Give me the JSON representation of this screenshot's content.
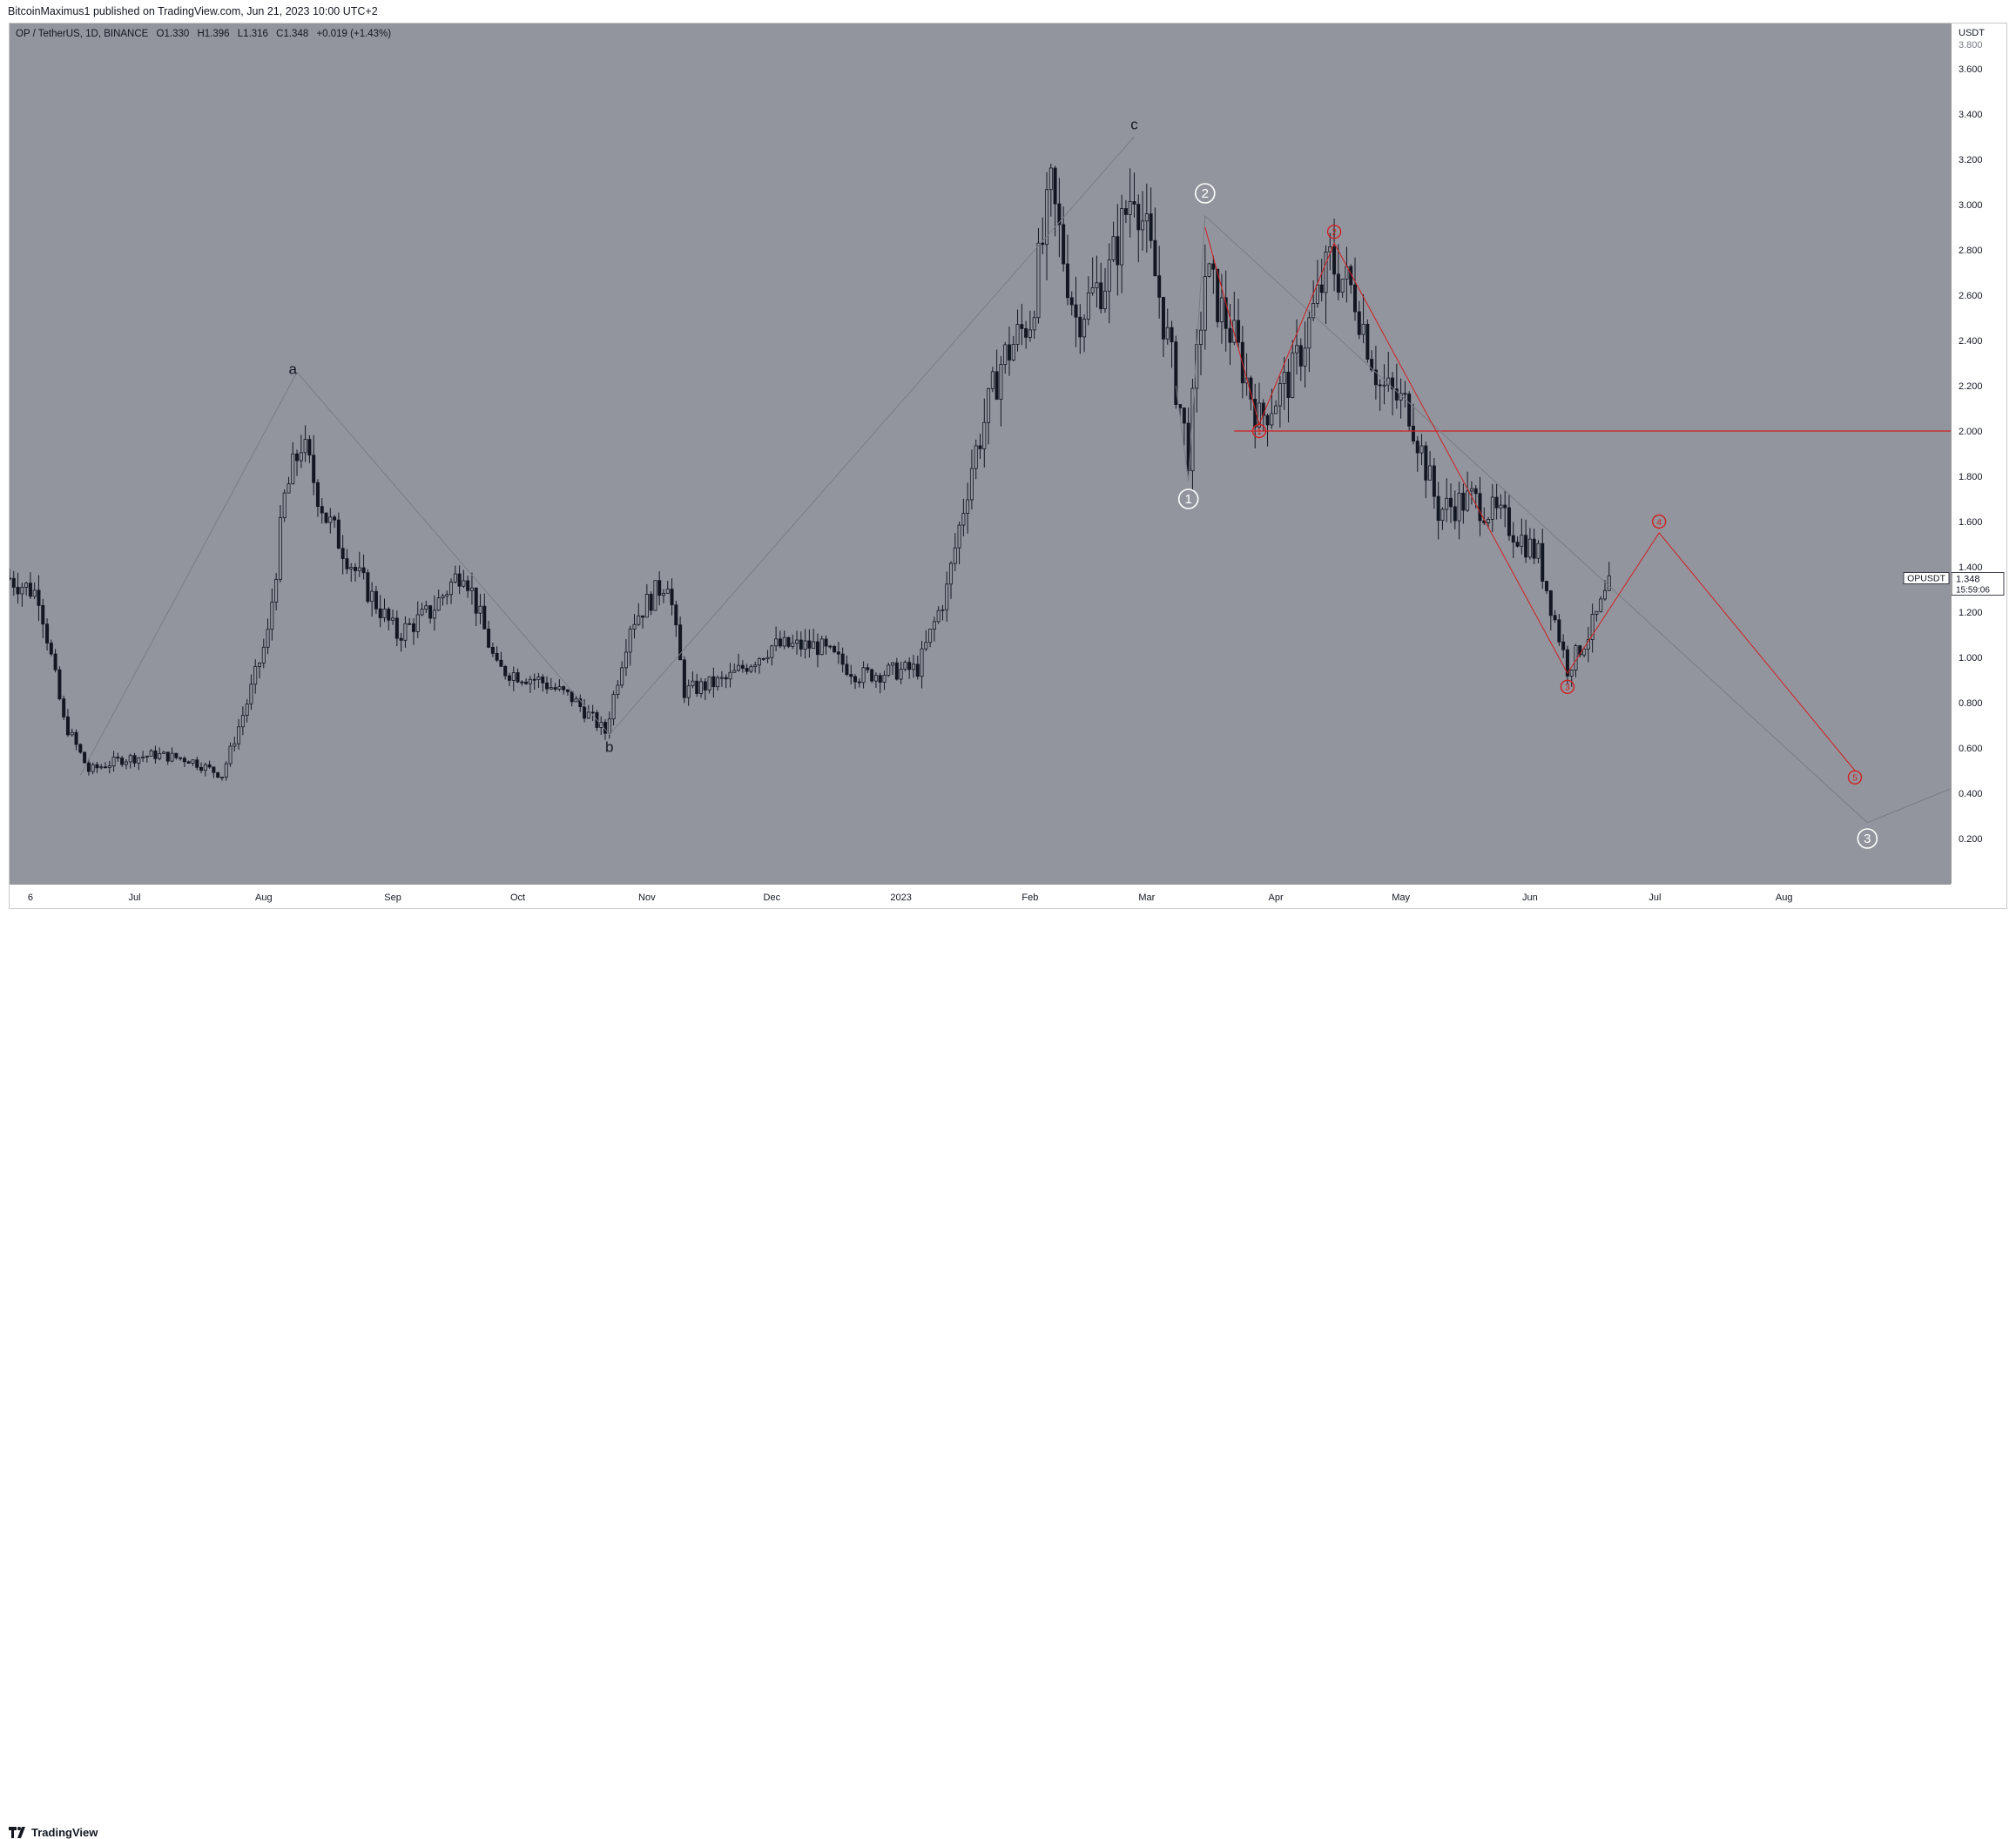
{
  "header": {
    "publisher": "BitcoinMaximus1 published on TradingView.com, Jun 21, 2023 10:00 UTC+2"
  },
  "legend": {
    "symbol": "OP / TetherUS, 1D, BINANCE",
    "o_label": "O",
    "o": "1.330",
    "h_label": "H",
    "h": "1.396",
    "l_label": "L",
    "l": "1.316",
    "c_label": "C",
    "c": "1.348",
    "change": "+0.019 (+1.43%)"
  },
  "price_axis": {
    "currency": "USDT",
    "top_partial": "3.800",
    "ticks": [
      "3.600",
      "3.400",
      "3.200",
      "3.000",
      "2.800",
      "2.600",
      "2.400",
      "2.200",
      "2.000",
      "1.800",
      "1.600",
      "1.400",
      "1.200",
      "1.000",
      "0.800",
      "0.600",
      "0.400",
      "0.200"
    ]
  },
  "price_tag": {
    "symbol": "OPUSDT",
    "price": "1.348",
    "countdown": "15:59:06"
  },
  "time_axis": {
    "labels": [
      "6",
      "Jul",
      "Aug",
      "Sep",
      "Oct",
      "Nov",
      "Dec",
      "2023",
      "Feb",
      "Mar",
      "Apr",
      "May",
      "Jun",
      "Jul",
      "Aug"
    ]
  },
  "footer": {
    "brand": "TradingView"
  },
  "colors": {
    "background": "#93959e",
    "candle": "#131722",
    "wave_red": "#d11f1f",
    "wave_white": "#ffffff",
    "wave_grey": "#7a7c85"
  },
  "chart_data": {
    "type": "candlestick",
    "title": "OP / TetherUS, 1D, BINANCE",
    "ylabel": "USDT",
    "ylim": [
      0.0,
      3.8
    ],
    "x_range": [
      "2022-06-01",
      "2023-09-10"
    ],
    "candles_close": [
      {
        "date": "2022-06-01",
        "close": 1.35
      },
      {
        "date": "2022-06-08",
        "close": 1.28
      },
      {
        "date": "2022-06-14",
        "close": 0.72
      },
      {
        "date": "2022-06-20",
        "close": 0.5
      },
      {
        "date": "2022-06-28",
        "close": 0.55
      },
      {
        "date": "2022-07-06",
        "close": 0.57
      },
      {
        "date": "2022-07-14",
        "close": 0.55
      },
      {
        "date": "2022-07-22",
        "close": 0.48
      },
      {
        "date": "2022-07-28",
        "close": 0.8
      },
      {
        "date": "2022-08-02",
        "close": 1.1
      },
      {
        "date": "2022-08-06",
        "close": 1.7
      },
      {
        "date": "2022-08-10",
        "close": 1.95
      },
      {
        "date": "2022-08-16",
        "close": 1.62
      },
      {
        "date": "2022-08-24",
        "close": 1.35
      },
      {
        "date": "2022-09-02",
        "close": 1.1
      },
      {
        "date": "2022-09-10",
        "close": 1.2
      },
      {
        "date": "2022-09-18",
        "close": 1.4
      },
      {
        "date": "2022-09-26",
        "close": 0.95
      },
      {
        "date": "2022-10-06",
        "close": 0.9
      },
      {
        "date": "2022-10-14",
        "close": 0.82
      },
      {
        "date": "2022-10-22",
        "close": 0.67
      },
      {
        "date": "2022-10-28",
        "close": 1.15
      },
      {
        "date": "2022-11-06",
        "close": 1.35
      },
      {
        "date": "2022-11-10",
        "close": 0.85
      },
      {
        "date": "2022-11-20",
        "close": 0.9
      },
      {
        "date": "2022-12-01",
        "close": 1.05
      },
      {
        "date": "2022-12-12",
        "close": 1.05
      },
      {
        "date": "2022-12-22",
        "close": 0.92
      },
      {
        "date": "2023-01-05",
        "close": 0.95
      },
      {
        "date": "2023-01-12",
        "close": 1.3
      },
      {
        "date": "2023-01-18",
        "close": 1.85
      },
      {
        "date": "2023-01-25",
        "close": 2.3
      },
      {
        "date": "2023-02-01",
        "close": 2.5
      },
      {
        "date": "2023-02-06",
        "close": 3.05
      },
      {
        "date": "2023-02-12",
        "close": 2.5
      },
      {
        "date": "2023-02-20",
        "close": 2.7
      },
      {
        "date": "2023-02-26",
        "close": 3.1
      },
      {
        "date": "2023-03-04",
        "close": 2.6
      },
      {
        "date": "2023-03-08",
        "close": 2.2
      },
      {
        "date": "2023-03-11",
        "close": 1.9
      },
      {
        "date": "2023-03-15",
        "close": 2.7
      },
      {
        "date": "2023-03-22",
        "close": 2.4
      },
      {
        "date": "2023-03-28",
        "close": 2.05
      },
      {
        "date": "2023-04-05",
        "close": 2.25
      },
      {
        "date": "2023-04-14",
        "close": 2.75
      },
      {
        "date": "2023-04-20",
        "close": 2.6
      },
      {
        "date": "2023-04-26",
        "close": 2.2
      },
      {
        "date": "2023-05-03",
        "close": 2.1
      },
      {
        "date": "2023-05-10",
        "close": 1.65
      },
      {
        "date": "2023-05-18",
        "close": 1.7
      },
      {
        "date": "2023-05-26",
        "close": 1.6
      },
      {
        "date": "2023-06-03",
        "close": 1.45
      },
      {
        "date": "2023-06-10",
        "close": 0.95
      },
      {
        "date": "2023-06-15",
        "close": 1.1
      },
      {
        "date": "2023-06-21",
        "close": 1.348
      }
    ],
    "horizontal_line": {
      "price": 2.0,
      "color": "#d11f1f"
    },
    "wave_labels": [
      {
        "text": "a",
        "date": "2022-08-08",
        "price": 2.27,
        "style": "plain"
      },
      {
        "text": "b",
        "date": "2022-10-23",
        "price": 0.6,
        "style": "plain"
      },
      {
        "text": "c",
        "date": "2023-02-26",
        "price": 3.35,
        "style": "plain"
      },
      {
        "text": "1",
        "date": "2023-03-11",
        "price": 1.7,
        "style": "circle-white"
      },
      {
        "text": "2",
        "date": "2023-03-15",
        "price": 3.05,
        "style": "circle-white"
      },
      {
        "text": "3",
        "date": "2023-08-21",
        "price": 0.2,
        "style": "circle-white"
      },
      {
        "text": "1",
        "date": "2023-03-28",
        "price": 2.0,
        "style": "circle-red"
      },
      {
        "text": "2",
        "date": "2023-04-15",
        "price": 2.88,
        "style": "circle-red"
      },
      {
        "text": "3",
        "date": "2023-06-10",
        "price": 0.87,
        "style": "circle-red"
      },
      {
        "text": "4",
        "date": "2023-07-02",
        "price": 1.6,
        "style": "circle-red"
      },
      {
        "text": "5",
        "date": "2023-08-18",
        "price": 0.47,
        "style": "circle-red"
      }
    ],
    "wave_paths": [
      {
        "color": "#7a7c85",
        "points": [
          [
            "2022-06-18",
            0.48
          ],
          [
            "2022-08-09",
            2.26
          ],
          [
            "2022-10-23",
            0.66
          ],
          [
            "2023-02-26",
            3.3
          ]
        ]
      },
      {
        "color": "#7a7c85",
        "points": [
          [
            "2023-03-08",
            2.2
          ],
          [
            "2023-03-11",
            1.78
          ],
          [
            "2023-03-15",
            2.95
          ],
          [
            "2023-08-21",
            0.27
          ],
          [
            "2023-09-10",
            0.42
          ]
        ]
      },
      {
        "color": "#d11f1f",
        "points": [
          [
            "2023-03-15",
            2.9
          ],
          [
            "2023-03-28",
            2.03
          ],
          [
            "2023-04-15",
            2.83
          ],
          [
            "2023-06-10",
            0.93
          ],
          [
            "2023-07-02",
            1.55
          ],
          [
            "2023-08-18",
            0.5
          ]
        ]
      }
    ]
  }
}
